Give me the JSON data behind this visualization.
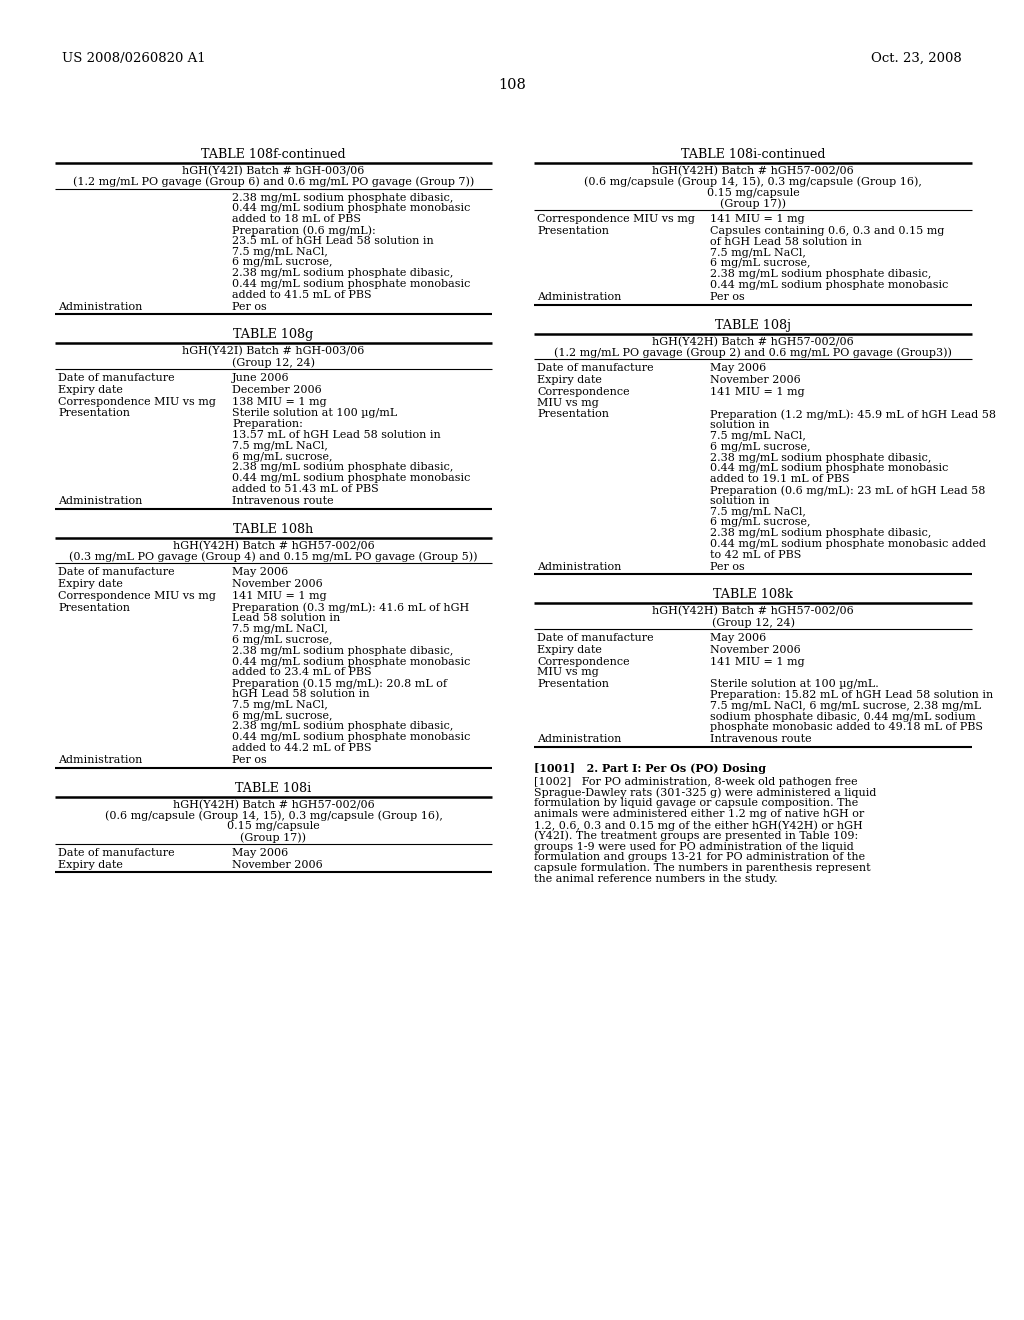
{
  "bg_color": "#ffffff",
  "text_color": "#000000",
  "page_number": "108",
  "header_left": "US 2008/0260820 A1",
  "header_right": "Oct. 23, 2008",
  "left_col_tables": [
    {
      "title": "TABLE 108f-continued",
      "subtitle1": "hGH(Y42I) Batch # hGH-003/06",
      "subtitle2": "(1.2 mg/mL PO gavage (Group 6) and 0.6 mg/mL PO gavage (Group 7))",
      "rows": [
        {
          "label": "",
          "value": "2.38 mg/mL sodium phosphate dibasic,\n0.44 mg/mL sodium phosphate monobasic\nadded to 18 mL of PBS\nPreparation (0.6 mg/mL):\n23.5 mL of hGH Lead 58 solution in\n7.5 mg/mL NaCl,\n6 mg/mL sucrose,\n2.38 mg/mL sodium phosphate dibasic,\n0.44 mg/mL sodium phosphate monobasic\nadded to 41.5 mL of PBS"
        },
        {
          "label": "Administration",
          "value": "Per os"
        }
      ]
    },
    {
      "title": "TABLE 108g",
      "subtitle1": "hGH(Y42I) Batch # hGH-003/06",
      "subtitle2": "(Group 12, 24)",
      "rows": [
        {
          "label": "Date of manufacture",
          "value": "June 2006"
        },
        {
          "label": "Expiry date",
          "value": "December 2006"
        },
        {
          "label": "Correspondence MIU vs mg",
          "value": "138 MIU = 1 mg"
        },
        {
          "label": "Presentation",
          "value": "Sterile solution at 100 µg/mL\nPreparation:\n13.57 mL of hGH Lead 58 solution in\n7.5 mg/mL NaCl,\n6 mg/mL sucrose,\n2.38 mg/mL sodium phosphate dibasic,\n0.44 mg/mL sodium phosphate monobasic\nadded to 51.43 mL of PBS"
        },
        {
          "label": "Administration",
          "value": "Intravenous route"
        }
      ]
    },
    {
      "title": "TABLE 108h",
      "subtitle1": "hGH(Y42H) Batch # hGH57-002/06",
      "subtitle2": "(0.3 mg/mL PO gavage (Group 4) and 0.15 mg/mL PO gavage (Group 5))",
      "rows": [
        {
          "label": "Date of manufacture",
          "value": "May 2006"
        },
        {
          "label": "Expiry date",
          "value": "November 2006"
        },
        {
          "label": "Correspondence MIU vs mg",
          "value": "141 MIU = 1 mg"
        },
        {
          "label": "Presentation",
          "value": "Preparation (0.3 mg/mL): 41.6 mL of hGH\nLead 58 solution in\n7.5 mg/mL NaCl,\n6 mg/mL sucrose,\n2.38 mg/mL sodium phosphate dibasic,\n0.44 mg/mL sodium phosphate monobasic\nadded to 23.4 mL of PBS\nPreparation (0.15 mg/mL): 20.8 mL of\nhGH Lead 58 solution in\n7.5 mg/mL NaCl,\n6 mg/mL sucrose,\n2.38 mg/mL sodium phosphate dibasic,\n0.44 mg/mL sodium phosphate monobasic\nadded to 44.2 mL of PBS"
        },
        {
          "label": "Administration",
          "value": "Per os"
        }
      ]
    },
    {
      "title": "TABLE 108i",
      "subtitle1": "hGH(Y42H) Batch # hGH57-002/06",
      "subtitle2": "(0.6 mg/capsule (Group 14, 15), 0.3 mg/capsule (Group 16),",
      "subtitle3": "0.15 mg/capsule",
      "subtitle4": "(Group 17))",
      "rows": [
        {
          "label": "Date of manufacture",
          "value": "May 2006"
        },
        {
          "label": "Expiry date",
          "value": "November 2006"
        }
      ]
    }
  ],
  "right_col_tables": [
    {
      "title": "TABLE 108i-continued",
      "subtitle1": "hGH(Y42H) Batch # hGH57-002/06",
      "subtitle2": "(0.6 mg/capsule (Group 14, 15), 0.3 mg/capsule (Group 16),",
      "subtitle3": "0.15 mg/capsule",
      "subtitle4": "(Group 17))",
      "rows": [
        {
          "label": "Correspondence MIU vs mg",
          "value": "141 MIU = 1 mg"
        },
        {
          "label": "Presentation",
          "value": "Capsules containing 0.6, 0.3 and 0.15 mg\nof hGH Lead 58 solution in\n7.5 mg/mL NaCl,\n6 mg/mL sucrose,\n2.38 mg/mL sodium phosphate dibasic,\n0.44 mg/mL sodium phosphate monobasic"
        },
        {
          "label": "Administration",
          "value": "Per os"
        }
      ]
    },
    {
      "title": "TABLE 108j",
      "subtitle1": "hGH(Y42H) Batch # hGH57-002/06",
      "subtitle2": "(1.2 mg/mL PO gavage (Group 2) and 0.6 mg/mL PO gavage (Group3))",
      "subtitle3": "",
      "subtitle4": "",
      "rows": [
        {
          "label": "Date of manufacture",
          "value": "May 2006"
        },
        {
          "label": "Expiry date",
          "value": "November 2006"
        },
        {
          "label": "Correspondence\nMIU vs mg",
          "value": "141 MIU = 1 mg"
        },
        {
          "label": "Presentation",
          "value": "Preparation (1.2 mg/mL): 45.9 mL of hGH Lead 58\nsolution in\n7.5 mg/mL NaCl,\n6 mg/mL sucrose,\n2.38 mg/mL sodium phosphate dibasic,\n0.44 mg/mL sodium phosphate monobasic\nadded to 19.1 mL of PBS\nPreparation (0.6 mg/mL): 23 mL of hGH Lead 58\nsolution in\n7.5 mg/mL NaCl,\n6 mg/mL sucrose,\n2.38 mg/mL sodium phosphate dibasic,\n0.44 mg/mL sodium phosphate monobasic added\nto 42 mL of PBS"
        },
        {
          "label": "Administration",
          "value": "Per os"
        }
      ]
    },
    {
      "title": "TABLE 108k",
      "subtitle1": "hGH(Y42H) Batch # hGH57-002/06",
      "subtitle2": "(Group 12, 24)",
      "subtitle3": "",
      "subtitle4": "",
      "rows": [
        {
          "label": "Date of manufacture",
          "value": "May 2006"
        },
        {
          "label": "Expiry date",
          "value": "November 2006"
        },
        {
          "label": "Correspondence\nMIU vs mg",
          "value": "141 MIU = 1 mg"
        },
        {
          "label": "Presentation",
          "value": "Sterile solution at 100 µg/mL.\nPreparation: 15.82 mL of hGH Lead 58 solution in\n7.5 mg/mL NaCl, 6 mg/mL sucrose, 2.38 mg/mL\nsodium phosphate dibasic, 0.44 mg/mL sodium\nphosphate monobasic added to 49.18 mL of PBS"
        },
        {
          "label": "Administration",
          "value": "Intravenous route"
        }
      ]
    }
  ],
  "paragraph_1001": "[1001]   2. Part I: Per Os (PO) Dosing",
  "paragraph_1002_lines": [
    "[1002]   For PO administration, 8-week old pathogen free",
    "Sprague-Dawley rats (301-325 g) were administered a liquid",
    "formulation by liquid gavage or capsule composition. The",
    "animals were administered either 1.2 mg of native hGH or",
    "1.2, 0.6, 0.3 and 0.15 mg of the either hGH(Y42H) or hGH",
    "(Y42I). The treatment groups are presented in Table 109:",
    "groups 1-9 were used for PO administration of the liquid",
    "formulation and groups 13-21 for PO administration of the",
    "capsule formulation. The numbers in parenthesis represent",
    "the animal reference numbers in the study."
  ]
}
